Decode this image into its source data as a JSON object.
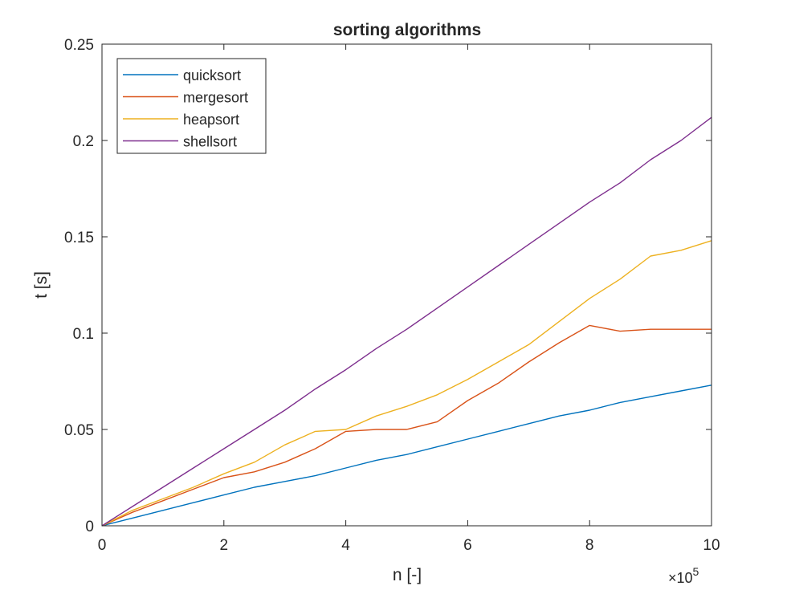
{
  "chart_data": {
    "type": "line",
    "title": "sorting algorithms",
    "xlabel": "n [-]",
    "ylabel": "t [s]",
    "x_exponent_base": "×10",
    "x_exponent_power": "5",
    "xlim": [
      0,
      10
    ],
    "ylim": [
      0,
      0.25
    ],
    "x_ticks": [
      0,
      2,
      4,
      6,
      8,
      10
    ],
    "x_tick_labels": [
      "0",
      "2",
      "4",
      "6",
      "8",
      "10"
    ],
    "y_ticks": [
      0,
      0.05,
      0.1,
      0.15,
      0.2,
      0.25
    ],
    "y_tick_labels": [
      "0",
      "0.05",
      "0.1",
      "0.15",
      "0.2",
      "0.25"
    ],
    "grid": false,
    "legend_position": "top-left",
    "series": [
      {
        "name": "quicksort",
        "color": "#0072BD",
        "x": [
          0,
          0.5,
          1,
          1.5,
          2,
          2.5,
          3,
          3.5,
          4,
          4.5,
          5,
          5.5,
          6,
          6.5,
          7,
          7.5,
          8,
          8.5,
          9,
          9.5,
          10
        ],
        "y": [
          0,
          0.004,
          0.008,
          0.012,
          0.016,
          0.02,
          0.023,
          0.026,
          0.03,
          0.034,
          0.037,
          0.041,
          0.045,
          0.049,
          0.053,
          0.057,
          0.06,
          0.064,
          0.067,
          0.07,
          0.073
        ]
      },
      {
        "name": "mergesort",
        "color": "#D95319",
        "x": [
          0,
          0.5,
          1,
          1.5,
          2,
          2.5,
          3,
          3.5,
          4,
          4.5,
          5,
          5.5,
          6,
          6.5,
          7,
          7.5,
          8,
          8.5,
          9,
          9.5,
          10
        ],
        "y": [
          0,
          0.007,
          0.013,
          0.019,
          0.025,
          0.028,
          0.033,
          0.04,
          0.049,
          0.05,
          0.05,
          0.054,
          0.065,
          0.074,
          0.085,
          0.095,
          0.104,
          0.101,
          0.102,
          0.102,
          0.102
        ]
      },
      {
        "name": "heapsort",
        "color": "#EDB120",
        "x": [
          0,
          0.5,
          1,
          1.5,
          2,
          2.5,
          3,
          3.5,
          4,
          4.5,
          5,
          5.5,
          6,
          6.5,
          7,
          7.5,
          8,
          8.5,
          9,
          9.5,
          10
        ],
        "y": [
          0,
          0.008,
          0.014,
          0.02,
          0.027,
          0.033,
          0.042,
          0.049,
          0.05,
          0.057,
          0.062,
          0.068,
          0.076,
          0.085,
          0.094,
          0.106,
          0.118,
          0.128,
          0.14,
          0.143,
          0.148
        ]
      },
      {
        "name": "shellsort",
        "color": "#7E2F8E",
        "x": [
          0,
          0.5,
          1,
          1.5,
          2,
          2.5,
          3,
          3.5,
          4,
          4.5,
          5,
          5.5,
          6,
          6.5,
          7,
          7.5,
          8,
          8.5,
          9,
          9.5,
          10
        ],
        "y": [
          0,
          0.01,
          0.02,
          0.03,
          0.04,
          0.05,
          0.06,
          0.071,
          0.081,
          0.092,
          0.102,
          0.113,
          0.124,
          0.135,
          0.146,
          0.157,
          0.168,
          0.178,
          0.19,
          0.2,
          0.212
        ]
      }
    ]
  }
}
